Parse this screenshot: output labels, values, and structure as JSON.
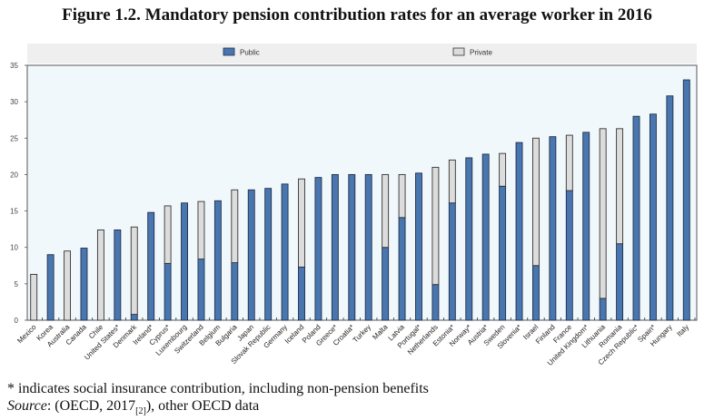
{
  "figure": {
    "title": "Figure 1.2. Mandatory pension contribution rates for an average worker in 2016",
    "footnote": "* indicates social insurance contribution, including non-pension benefits",
    "source_label": "Source",
    "source_text_pre": ": (OECD, 2017",
    "source_ref": "[2]",
    "source_text_post": "), other OECD data"
  },
  "colors": {
    "public": "#4a76b0",
    "private": "#dcdcdc",
    "plot_bg": "#f1f8fc",
    "legend_bg": "#efefef"
  },
  "chart_data": {
    "type": "bar",
    "stacked": true,
    "title": "Figure 1.2. Mandatory pension contribution rates for an average worker in 2016",
    "xlabel": "",
    "ylabel": "",
    "ylim": [
      0,
      35
    ],
    "yticks": [
      0,
      5,
      10,
      15,
      20,
      25,
      30,
      35
    ],
    "grid": false,
    "legend_position": "top",
    "categories": [
      "Mexico",
      "Korea",
      "Australia",
      "Canada",
      "Chile",
      "United States*",
      "Denmark",
      "Ireland*",
      "Cyprus*",
      "Luxembourg",
      "Switzerland",
      "Belgium",
      "Bulgaria",
      "Japan",
      "Slovak Republic",
      "Germany",
      "Iceland",
      "Poland",
      "Greece*",
      "Croatia*",
      "Turkey",
      "Malta",
      "Latvia",
      "Portugal*",
      "Netherlands",
      "Estonia*",
      "Norway*",
      "Austria*",
      "Sweden",
      "Slovenia*",
      "Israel",
      "Finland",
      "France",
      "United Kingdom*",
      "Lithuania",
      "Romania",
      "Czech Republic*",
      "Spain*",
      "Hungary",
      "Italy"
    ],
    "series": [
      {
        "name": "Public",
        "values": [
          0,
          9.0,
          0,
          9.9,
          0,
          12.4,
          0.8,
          14.8,
          7.8,
          16.1,
          8.4,
          16.4,
          7.9,
          17.9,
          18.1,
          18.7,
          7.3,
          19.6,
          20.0,
          20.0,
          20.0,
          10.0,
          14.1,
          20.2,
          4.9,
          16.1,
          22.3,
          22.8,
          18.4,
          24.4,
          7.5,
          25.2,
          17.8,
          25.8,
          3.0,
          10.5,
          28.0,
          28.3,
          30.8,
          33.0
        ]
      },
      {
        "name": "Private",
        "values": [
          6.3,
          0,
          9.5,
          0,
          12.4,
          0,
          12.0,
          0,
          7.9,
          0,
          7.9,
          0,
          10.0,
          0,
          0,
          0,
          12.1,
          0,
          0,
          0,
          0,
          10.0,
          5.9,
          0,
          16.1,
          5.9,
          0,
          0,
          4.5,
          0,
          17.5,
          0,
          7.6,
          0,
          23.3,
          15.8,
          0,
          0,
          0,
          0
        ]
      }
    ]
  }
}
